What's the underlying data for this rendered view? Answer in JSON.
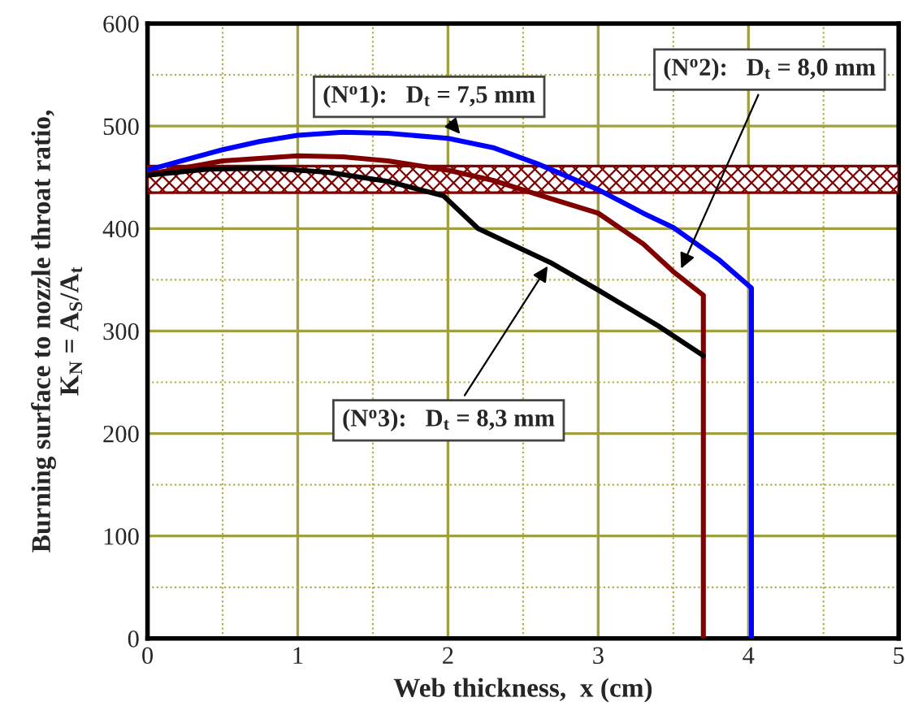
{
  "chart_data": {
    "type": "line",
    "xlabel": "Web thickness,  x (cm)",
    "ylabel": "Burning surface to nozzle throat ratio,\nK$_{N}$ = A$_{S}$/A$_{t}$",
    "series": [
      {
        "color": "#0000ff",
        "x": [
          0,
          0.25,
          0.5,
          0.75,
          1.0,
          1.3,
          1.6,
          2.0,
          2.3,
          2.6,
          3.0,
          3.3,
          3.5,
          3.8,
          4.02,
          4.02
        ],
        "values": [
          457,
          467,
          477,
          485,
          491,
          494,
          493,
          488,
          479,
          463,
          438,
          415,
          401,
          370,
          342,
          0
        ]
      },
      {
        "color": "#800000",
        "x": [
          0,
          0.5,
          1.0,
          1.3,
          1.6,
          2.0,
          2.3,
          2.6,
          3.0,
          3.3,
          3.5,
          3.7,
          3.7
        ],
        "values": [
          453,
          466,
          471,
          470,
          466,
          457,
          447,
          433,
          415,
          385,
          358,
          335,
          0
        ]
      },
      {
        "color": "#000000",
        "x": [
          0,
          0.4,
          0.8,
          1.2,
          1.6,
          1.97,
          2.2,
          2.68,
          3.0,
          3.4,
          3.7
        ],
        "values": [
          452,
          458,
          459,
          455,
          446,
          432,
          400,
          367,
          340,
          305,
          276
        ]
      }
    ],
    "bands": [
      {
        "axis": "y",
        "from": 435,
        "to": 461,
        "color": "#800000"
      }
    ],
    "annotations": [
      {
        "text": "(N$^{o}$1):   D$_{t}$ = 7,5 mm",
        "x": 2.1,
        "y": 489
      },
      {
        "text": "(N$^{o}$2):   D$_{t}$ = 8,0 mm",
        "x": 3.54,
        "y": 357
      },
      {
        "text": "(N$^{o}$3):   D$_{t}$ = 8,3 mm",
        "x": 2.68,
        "y": 367
      }
    ],
    "xlim": [
      0,
      5
    ],
    "ylim": [
      0,
      600
    ],
    "xticks": [
      0,
      {
        "value": 0.5,
        "label": null
      },
      1,
      {
        "value": 1.5,
        "label": null
      },
      2,
      {
        "value": 2.5,
        "label": null
      },
      3,
      {
        "value": 3.5,
        "label": null
      },
      4,
      {
        "value": 4.5,
        "label": null
      },
      5
    ],
    "yticks": [
      0,
      {
        "value": 50,
        "label": null
      },
      100,
      {
        "value": 150,
        "label": null
      },
      200,
      {
        "value": 250,
        "label": null
      },
      300,
      {
        "value": 350,
        "label": null
      },
      400,
      500,
      {
        "value": 550,
        "label": null
      },
      600
    ],
    "grid": true,
    "line_style": "solid",
    "marker": "none"
  }
}
